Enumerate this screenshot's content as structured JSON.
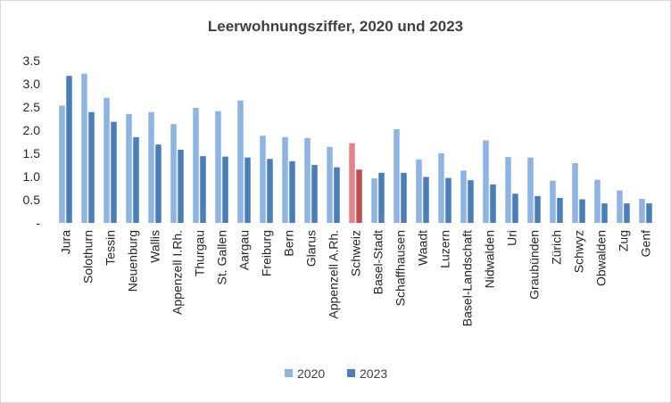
{
  "chart_data": {
    "type": "bar",
    "title": "Leerwohnungsziffer, 2020 und 2023",
    "xlabel": "",
    "ylabel": "",
    "ylim": [
      0,
      3.5
    ],
    "y_ticks": [
      "-",
      "0.5",
      "1.0",
      "1.5",
      "2.0",
      "2.5",
      "3.0",
      "3.5"
    ],
    "grid": false,
    "legend_position": "bottom",
    "highlight_category": "Schweiz",
    "colors": {
      "2020": "#8eb4e3",
      "2023": "#4a7ebb",
      "highlight_2020": "#e6838a",
      "highlight_2023": "#c0504d"
    },
    "categories": [
      "Jura",
      "Solothurn",
      "Tessin",
      "Neuenburg",
      "Wallis",
      "Appenzell I.Rh.",
      "Thurgau",
      "St. Gallen",
      "Aargau",
      "Freiburg",
      "Bern",
      "Glarus",
      "Appenzell A.Rh.",
      "Schweiz",
      "Basel-Stadt",
      "Schaffhausen",
      "Waadt",
      "Luzern",
      "Basel-Landschaft",
      "Nidwalden",
      "Uri",
      "Graubünden",
      "Zürich",
      "Schwyz",
      "Obwalden",
      "Zug",
      "Genf"
    ],
    "series": [
      {
        "name": "2020",
        "values": [
          2.53,
          3.22,
          2.7,
          2.35,
          2.39,
          2.13,
          2.48,
          2.41,
          2.64,
          1.88,
          1.85,
          1.83,
          1.64,
          1.72,
          0.96,
          2.02,
          1.37,
          1.5,
          1.13,
          1.78,
          1.42,
          1.41,
          0.91,
          1.29,
          0.93,
          0.7,
          0.52
        ]
      },
      {
        "name": "2023",
        "values": [
          3.17,
          2.39,
          2.18,
          1.85,
          1.69,
          1.58,
          1.44,
          1.43,
          1.41,
          1.38,
          1.33,
          1.25,
          1.2,
          1.15,
          1.08,
          1.08,
          0.99,
          0.97,
          0.92,
          0.83,
          0.63,
          0.58,
          0.54,
          0.51,
          0.42,
          0.42,
          0.42
        ]
      }
    ]
  }
}
